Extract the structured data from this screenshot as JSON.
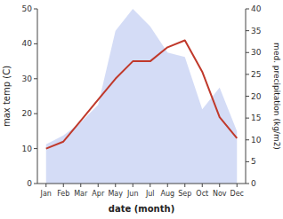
{
  "chart_data": {
    "type": "line",
    "categories": [
      "Jan",
      "Feb",
      "Mar",
      "Apr",
      "May",
      "Jun",
      "Jul",
      "Aug",
      "Sep",
      "Oct",
      "Nov",
      "Dec"
    ],
    "series": [
      {
        "type": "area",
        "axis": "y2",
        "color": "#b8c4f0",
        "values": [
          9,
          11,
          14,
          18,
          35,
          40,
          36,
          30,
          29,
          17,
          22,
          12
        ]
      },
      {
        "type": "line",
        "color": "#c0392b",
        "values": [
          10,
          12,
          18,
          24,
          30,
          35,
          35,
          39,
          41,
          32,
          19,
          13
        ]
      }
    ],
    "xlabel": "date (month)",
    "ylabel": "max temp (C)",
    "y2label": "med. precipitation (kg/m2)",
    "ylim": [
      0,
      50
    ],
    "yticks": [
      0,
      10,
      20,
      30,
      40,
      50
    ],
    "y2lim": [
      0,
      40
    ],
    "y2ticks": [
      0,
      5,
      10,
      15,
      20,
      25,
      30,
      35,
      40
    ],
    "grid": false
  }
}
